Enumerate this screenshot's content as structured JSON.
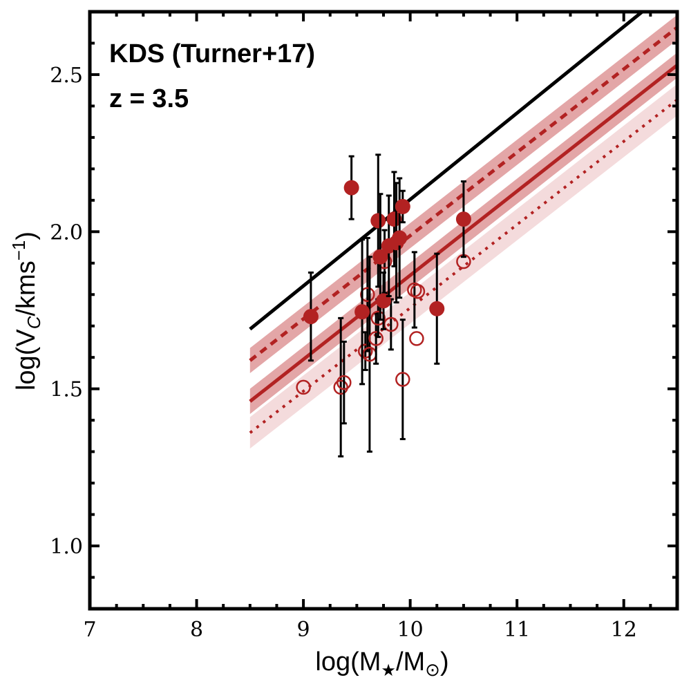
{
  "chart_data": {
    "type": "scatter",
    "title": "",
    "annotations": [
      "KDS (Turner+17)",
      "z = 3.5"
    ],
    "xlabel": {
      "pre": "log(M",
      "sub1": "★",
      "mid": "/M",
      "sub2": "⊙",
      "post": ")"
    },
    "ylabel": {
      "pre": "log(V",
      "sub": "C",
      "mid": "/kms",
      "sup": "−1",
      "post": ")"
    },
    "xlim": [
      7,
      12.5
    ],
    "ylim": [
      0.8,
      2.7
    ],
    "xticks": [
      7,
      8,
      9,
      10,
      11,
      12
    ],
    "xtick_labels": [
      "7",
      "8",
      "9",
      "10",
      "11",
      "12"
    ],
    "yticks": [
      1.0,
      1.5,
      2.0,
      2.5
    ],
    "ytick_labels": [
      "1.0",
      "1.5",
      "2.0",
      "2.5"
    ],
    "colors": {
      "accent": "#b22222",
      "band": "#c0393b",
      "black": "#000000"
    },
    "lines": [
      {
        "name": "reference-relation",
        "style": "solid",
        "color": "#000000",
        "x": [
          8.5,
          12.5
        ],
        "y": [
          1.69,
          2.79
        ],
        "band": 0
      },
      {
        "name": "fit-dashed",
        "style": "dashed",
        "color": "#b22222",
        "x": [
          8.5,
          12.5
        ],
        "y": [
          1.59,
          2.65
        ],
        "band": 0.04
      },
      {
        "name": "fit-solid",
        "style": "solid",
        "color": "#b22222",
        "x": [
          8.5,
          12.5
        ],
        "y": [
          1.46,
          2.53
        ],
        "band": 0.04
      },
      {
        "name": "fit-dotted",
        "style": "dotted",
        "color": "#b22222",
        "x": [
          8.5,
          12.5
        ],
        "y": [
          1.36,
          2.42
        ],
        "band": 0.05
      }
    ],
    "series": [
      {
        "name": "filled",
        "marker": "filled-circle",
        "points": [
          {
            "x": 9.07,
            "y": 1.73,
            "yerr": 0.14
          },
          {
            "x": 9.45,
            "y": 2.14,
            "yerr": 0.1
          },
          {
            "x": 9.55,
            "y": 1.745,
            "yerr": 0.23
          },
          {
            "x": 9.7,
            "y": 2.035,
            "yerr": 0.21
          },
          {
            "x": 9.72,
            "y": 1.92,
            "yerr": 0.2
          },
          {
            "x": 9.75,
            "y": 1.78,
            "yerr": 0.09
          },
          {
            "x": 9.8,
            "y": 1.955,
            "yerr": 0.16
          },
          {
            "x": 9.85,
            "y": 2.04,
            "yerr": 0.15
          },
          {
            "x": 9.87,
            "y": 1.965,
            "yerr": 0.19
          },
          {
            "x": 9.9,
            "y": 1.98,
            "yerr": 0.19
          },
          {
            "x": 9.93,
            "y": 2.08,
            "yerr": 0.05
          },
          {
            "x": 10.25,
            "y": 1.755,
            "yerr": 0.175
          },
          {
            "x": 10.5,
            "y": 2.04,
            "yerr": 0.12
          }
        ]
      },
      {
        "name": "open",
        "marker": "open-circle",
        "points": [
          {
            "x": 9.0,
            "y": 1.505,
            "yerr": 0.0
          },
          {
            "x": 9.35,
            "y": 1.505,
            "yerr": 0.22
          },
          {
            "x": 9.38,
            "y": 1.52,
            "yerr": 0.13
          },
          {
            "x": 9.58,
            "y": 1.62,
            "yerr": 0.06
          },
          {
            "x": 9.6,
            "y": 1.8,
            "yerr": 0.18
          },
          {
            "x": 9.62,
            "y": 1.61,
            "yerr": 0.31
          },
          {
            "x": 9.68,
            "y": 1.66,
            "yerr": 0.08
          },
          {
            "x": 9.7,
            "y": 1.725,
            "yerr": 0.06
          },
          {
            "x": 9.76,
            "y": 1.905,
            "yerr": 0.1
          },
          {
            "x": 9.82,
            "y": 1.705,
            "yerr": 0.08
          },
          {
            "x": 9.93,
            "y": 1.53,
            "yerr": 0.19
          },
          {
            "x": 10.04,
            "y": 1.815,
            "yerr": 0.12
          },
          {
            "x": 10.06,
            "y": 1.66,
            "yerr": 0.0
          },
          {
            "x": 10.07,
            "y": 1.81,
            "yerr": 0.0
          },
          {
            "x": 10.5,
            "y": 1.905,
            "yerr": 0.0
          }
        ]
      }
    ]
  }
}
